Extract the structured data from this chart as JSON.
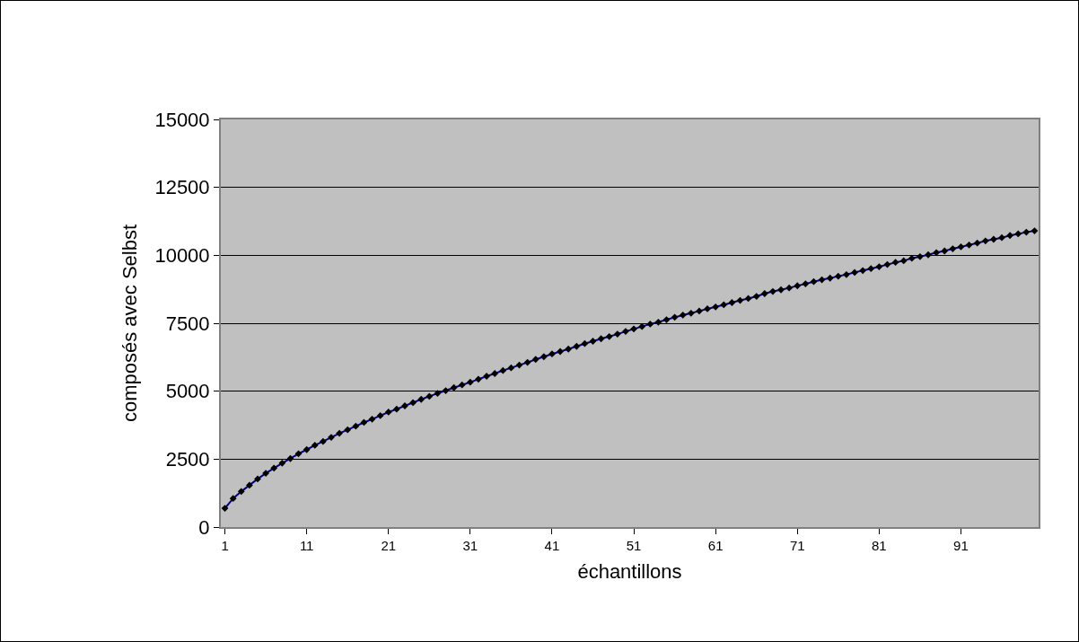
{
  "chart_data": {
    "type": "line",
    "xlabel": "échantillons",
    "ylabel": "composés avec Selbst",
    "x": [
      1,
      2,
      3,
      4,
      5,
      6,
      7,
      8,
      9,
      10,
      11,
      12,
      13,
      14,
      15,
      16,
      17,
      18,
      19,
      20,
      21,
      22,
      23,
      24,
      25,
      26,
      27,
      28,
      29,
      30,
      31,
      32,
      33,
      34,
      35,
      36,
      37,
      38,
      39,
      40,
      41,
      42,
      43,
      44,
      45,
      46,
      47,
      48,
      49,
      50,
      51,
      52,
      53,
      54,
      55,
      56,
      57,
      58,
      59,
      60,
      61,
      62,
      63,
      64,
      65,
      66,
      67,
      68,
      69,
      70,
      71,
      72,
      73,
      74,
      75,
      76,
      77,
      78,
      79,
      80,
      81,
      82,
      83,
      84,
      85,
      86,
      87,
      88,
      89,
      90,
      91,
      92,
      93,
      94,
      95,
      96,
      97,
      98,
      99,
      100
    ],
    "series": [
      {
        "color": "#000080",
        "values": [
          690,
          1050,
          1310,
          1540,
          1770,
          1980,
          2170,
          2350,
          2520,
          2700,
          2850,
          3010,
          3150,
          3300,
          3450,
          3580,
          3710,
          3850,
          3970,
          4100,
          4230,
          4340,
          4460,
          4580,
          4700,
          4810,
          4920,
          5020,
          5130,
          5230,
          5330,
          5440,
          5550,
          5650,
          5760,
          5860,
          5960,
          6060,
          6170,
          6270,
          6370,
          6460,
          6550,
          6650,
          6750,
          6840,
          6930,
          7010,
          7100,
          7200,
          7290,
          7380,
          7470,
          7540,
          7630,
          7720,
          7800,
          7870,
          7950,
          8030,
          8100,
          8180,
          8260,
          8340,
          8410,
          8490,
          8590,
          8670,
          8730,
          8800,
          8880,
          8950,
          9030,
          9100,
          9160,
          9230,
          9290,
          9370,
          9440,
          9510,
          9580,
          9660,
          9740,
          9800,
          9890,
          9950,
          10020,
          10100,
          10160,
          10240,
          10310,
          10380,
          10450,
          10530,
          10590,
          10650,
          10730,
          10790,
          10850,
          10900
        ]
      }
    ],
    "xlim": [
      0.5,
      100.5
    ],
    "xticks": [
      1,
      11,
      21,
      31,
      41,
      51,
      61,
      71,
      81,
      91
    ],
    "ylim": [
      0,
      15000
    ],
    "yticks": [
      0,
      2500,
      5000,
      7500,
      10000,
      12500,
      15000
    ],
    "grid": "y",
    "marker": "diamond",
    "line_style": "solid"
  }
}
